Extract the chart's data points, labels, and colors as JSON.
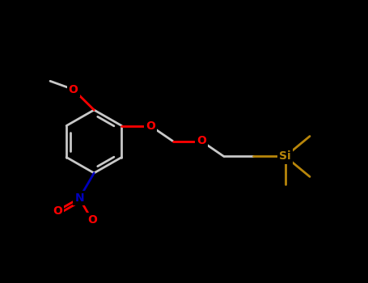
{
  "bg_color": "#000000",
  "bond_color": "#c8c8c8",
  "o_color": "#ff0000",
  "n_color": "#0000bb",
  "si_color": "#b8860b",
  "bond_width": 2.0,
  "font_size_atom": 10,
  "fig_width": 4.55,
  "fig_height": 3.5,
  "dpi": 100,
  "xlim": [
    0,
    9
  ],
  "ylim": [
    0,
    7
  ]
}
